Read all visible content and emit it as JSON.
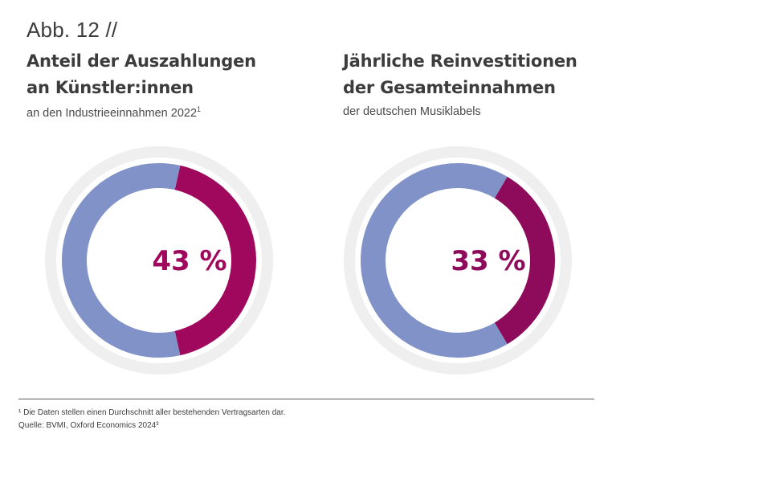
{
  "figure_label": "Abb. 12 //",
  "footnote": "¹ Die Daten stellen einen Durchschnitt aller bestehenden Vertragsarten dar.",
  "source": "Quelle: BVMI, Oxford Economics 2024³",
  "colors": {
    "highlight_left": "#a0085e",
    "highlight_right": "#8e0a5a",
    "remainder": "#8192c8",
    "outer_ring": "#efefef",
    "text": "#3c3c3c"
  },
  "chart_data": [
    {
      "type": "pie",
      "variant": "donut",
      "title_line1": "Anteil der Auszahlungen",
      "title_line2": "an Künstler:innen",
      "subtitle": "an den Industrieeinnahmen 2022",
      "subtitle_sup": "1",
      "label": "43 %",
      "slices": [
        {
          "name": "Anteil",
          "value": 43,
          "color": "#a0085e"
        },
        {
          "name": "Rest",
          "value": 57,
          "color": "#8192c8"
        }
      ]
    },
    {
      "type": "pie",
      "variant": "donut",
      "title_line1": "Jährliche Reinvestitionen",
      "title_line2": "der Gesamteinnahmen",
      "subtitle": "der deutschen Musiklabels",
      "subtitle_sup": "",
      "label": "33 %",
      "slices": [
        {
          "name": "Reinvestition",
          "value": 33,
          "color": "#8e0a5a"
        },
        {
          "name": "Rest",
          "value": 67,
          "color": "#8192c8"
        }
      ]
    }
  ]
}
